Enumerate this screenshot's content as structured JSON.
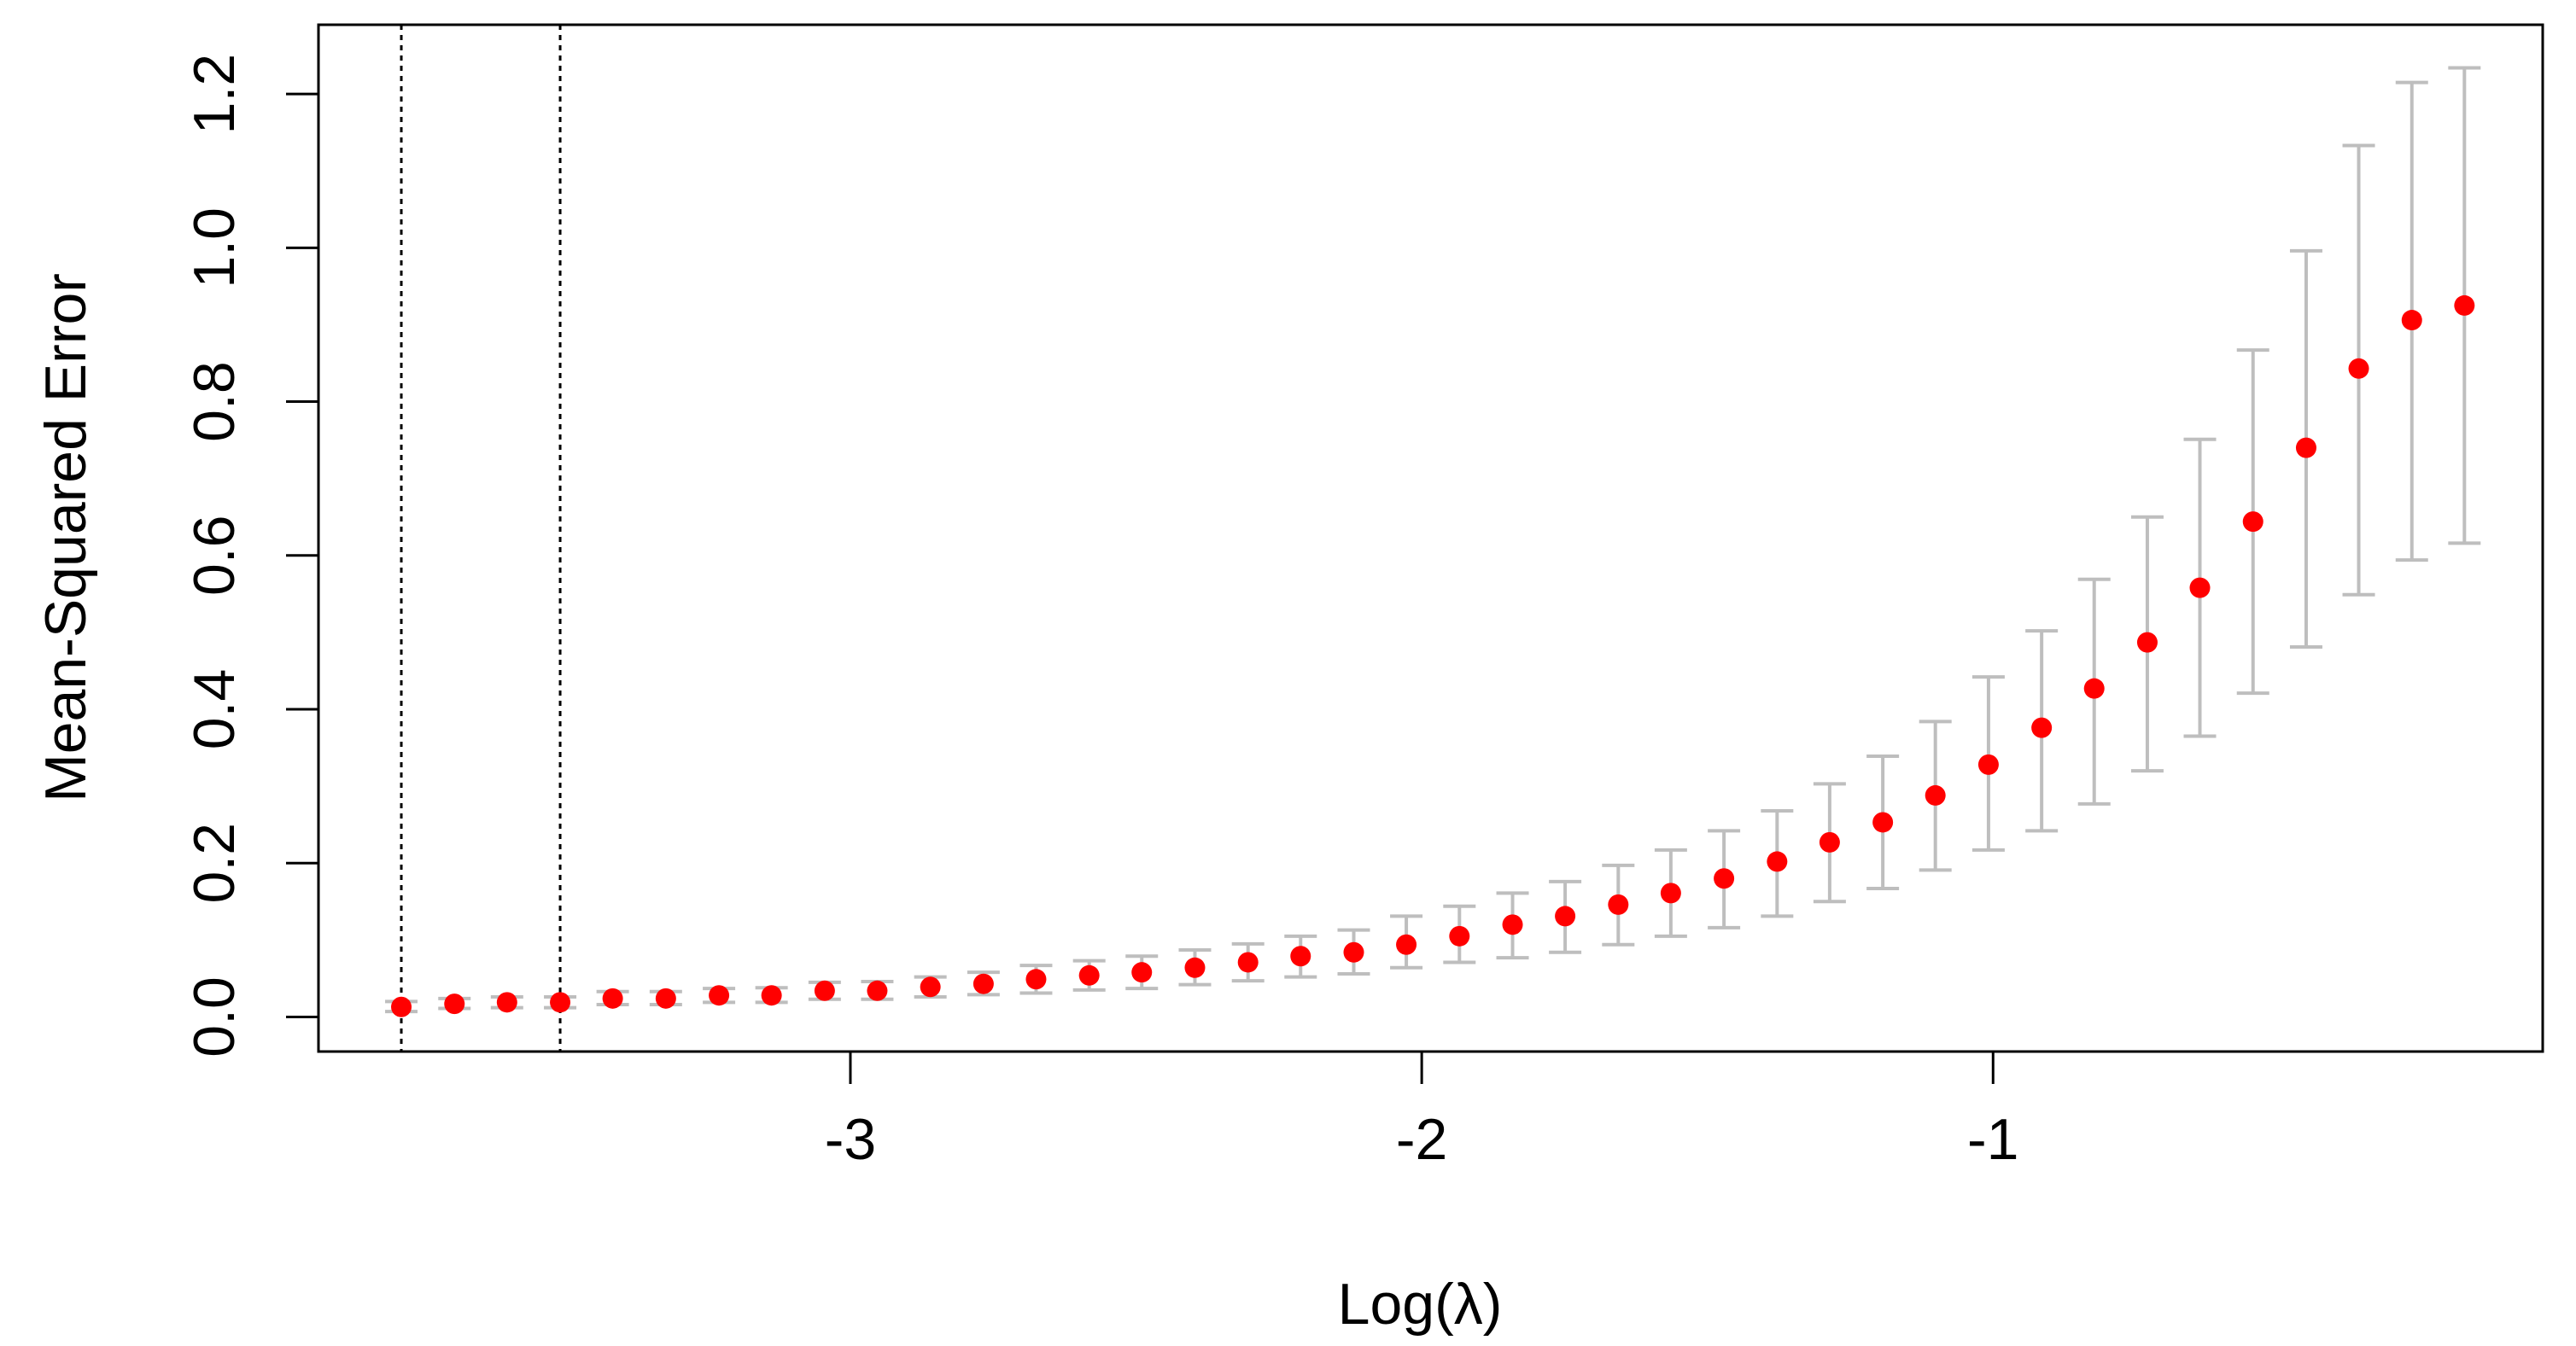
{
  "chart_data": {
    "type": "errorbar-scatter",
    "xlabel": "Log(λ)",
    "ylabel": "Mean-Squared Error",
    "x": [
      -3.786,
      -3.693,
      -3.601,
      -3.508,
      -3.416,
      -3.323,
      -3.23,
      -3.138,
      -3.045,
      -2.953,
      -2.86,
      -2.767,
      -2.675,
      -2.582,
      -2.49,
      -2.397,
      -2.304,
      -2.212,
      -2.119,
      -2.027,
      -1.934,
      -1.841,
      -1.749,
      -1.656,
      -1.564,
      -1.471,
      -1.378,
      -1.286,
      -1.193,
      -1.101,
      -1.008,
      -0.915,
      -0.823,
      -0.73,
      -0.638,
      -0.545,
      -0.452,
      -0.36,
      -0.267,
      -0.175
    ],
    "values": [
      0.013,
      0.017,
      0.019,
      0.019,
      0.024,
      0.024,
      0.028,
      0.028,
      0.034,
      0.034,
      0.039,
      0.043,
      0.049,
      0.054,
      0.058,
      0.064,
      0.071,
      0.079,
      0.084,
      0.094,
      0.105,
      0.12,
      0.131,
      0.146,
      0.161,
      0.18,
      0.202,
      0.227,
      0.253,
      0.288,
      0.328,
      0.376,
      0.427,
      0.487,
      0.558,
      0.644,
      0.74,
      0.843,
      0.906,
      0.925
    ],
    "upper": [
      0.02,
      0.024,
      0.026,
      0.026,
      0.033,
      0.033,
      0.037,
      0.038,
      0.045,
      0.046,
      0.052,
      0.058,
      0.067,
      0.073,
      0.079,
      0.087,
      0.095,
      0.105,
      0.113,
      0.131,
      0.144,
      0.161,
      0.176,
      0.197,
      0.217,
      0.242,
      0.268,
      0.303,
      0.339,
      0.384,
      0.442,
      0.502,
      0.569,
      0.65,
      0.751,
      0.867,
      0.996,
      1.133,
      1.215,
      1.234
    ],
    "lower": [
      0.007,
      0.011,
      0.012,
      0.012,
      0.016,
      0.016,
      0.019,
      0.019,
      0.023,
      0.023,
      0.026,
      0.029,
      0.031,
      0.035,
      0.037,
      0.042,
      0.047,
      0.052,
      0.056,
      0.064,
      0.071,
      0.077,
      0.084,
      0.094,
      0.105,
      0.116,
      0.131,
      0.15,
      0.167,
      0.191,
      0.217,
      0.242,
      0.277,
      0.32,
      0.365,
      0.421,
      0.481,
      0.549,
      0.594,
      0.616
    ],
    "color": "#ff0000",
    "errorbar_color": "#bebebe",
    "vlines": [
      -3.786,
      -3.508
    ],
    "xlim": [
      -3.931,
      -0.038
    ],
    "ylim": [
      -0.045,
      1.29
    ],
    "xticks": [
      -3,
      -2,
      -1
    ],
    "yticks": [
      {
        "value": 0,
        "label": "0.0"
      },
      0.2,
      0.4,
      0.6,
      0.8,
      {
        "value": 1,
        "label": "1.0"
      },
      1.2
    ]
  }
}
